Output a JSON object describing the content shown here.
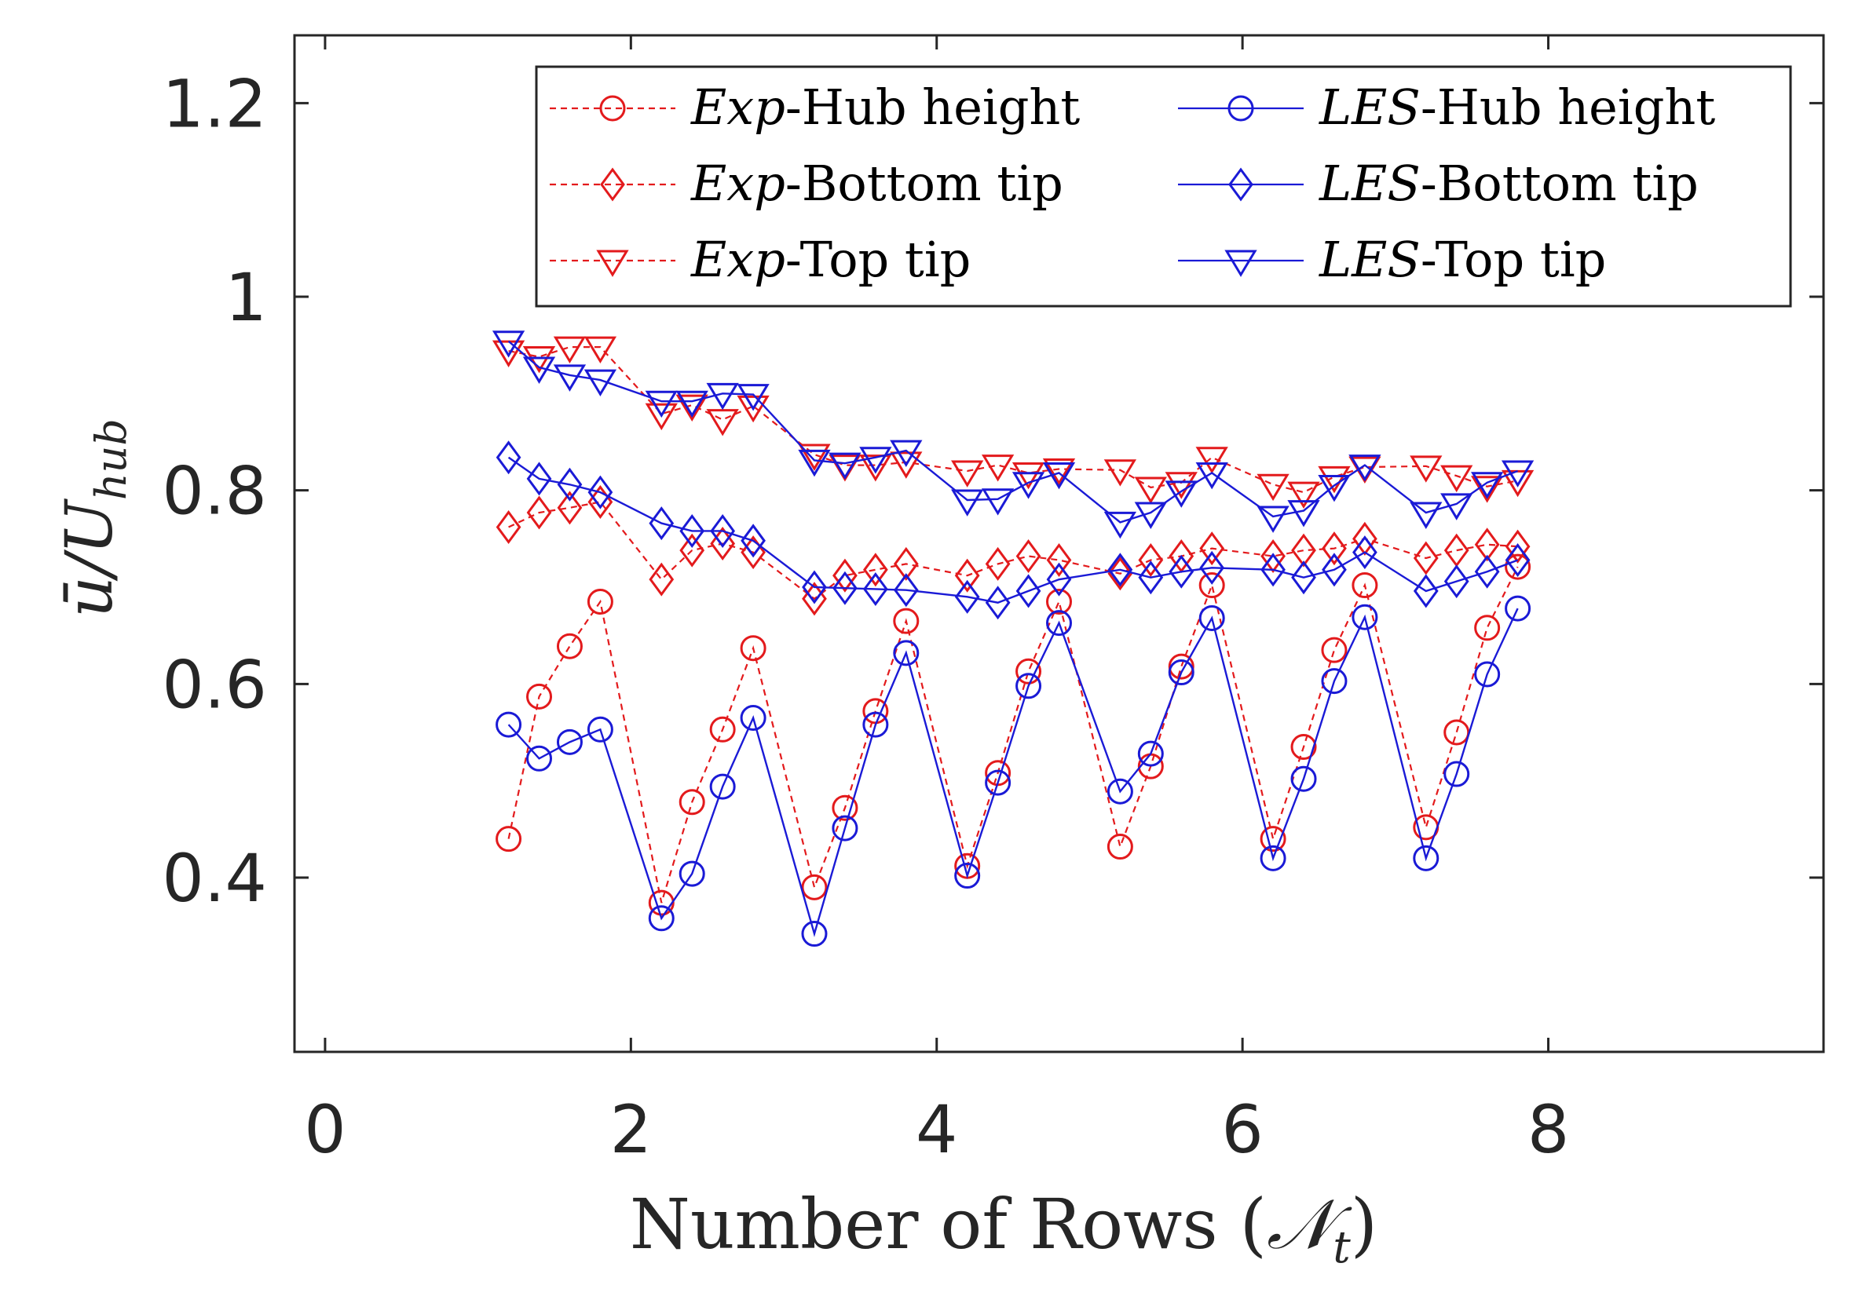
{
  "chart_data": {
    "type": "line",
    "title": "",
    "xlabel": "Number of Rows (",
    "xlabel_symbol": "𝒩",
    "xlabel_subscript": "t",
    "xlabel_close": ")",
    "ylabel": "ū/U",
    "ylabel_subscript": "hub",
    "xlim": [
      -0.2,
      9.8
    ],
    "ylim": [
      0.22,
      1.27
    ],
    "xticks": [
      0,
      2,
      4,
      6,
      8
    ],
    "xtick_labels": [
      "0",
      "2",
      "4",
      "6",
      "8"
    ],
    "yticks": [
      0.4,
      0.6,
      0.8,
      1.0,
      1.2
    ],
    "ytick_labels": [
      "0.4",
      "0.6",
      "0.8",
      "1",
      "1.2"
    ],
    "x": [
      1.2,
      1.4,
      1.6,
      1.8,
      2.2,
      2.4,
      2.6,
      2.8,
      3.2,
      3.4,
      3.6,
      3.8,
      4.2,
      4.4,
      4.6,
      4.8,
      5.2,
      5.4,
      5.6,
      5.8,
      6.2,
      6.4,
      6.6,
      6.8,
      7.2,
      7.4,
      7.6,
      7.8
    ],
    "legend_position": "top-right",
    "series": [
      {
        "name": "Exp-Hub height",
        "label_italic": "Exp",
        "label_rest": "-Hub height",
        "color": "#e31a1c",
        "line": "dashed",
        "marker": "circle",
        "values": [
          0.44,
          0.587,
          0.639,
          0.685,
          0.374,
          0.478,
          0.553,
          0.637,
          0.39,
          0.472,
          0.572,
          0.665,
          0.412,
          0.508,
          0.613,
          0.685,
          0.432,
          0.515,
          0.618,
          0.702,
          0.44,
          0.535,
          0.635,
          0.702,
          0.452,
          0.55,
          0.658,
          0.721
        ]
      },
      {
        "name": "LES-Hub height",
        "label_italic": "LES",
        "label_rest": "-Hub height",
        "color": "#1a1ad6",
        "line": "solid",
        "marker": "circle",
        "values": [
          0.558,
          0.523,
          0.54,
          0.553,
          0.358,
          0.404,
          0.494,
          0.565,
          0.342,
          0.451,
          0.558,
          0.632,
          0.402,
          0.498,
          0.598,
          0.663,
          0.489,
          0.528,
          0.612,
          0.668,
          0.42,
          0.502,
          0.603,
          0.669,
          0.42,
          0.507,
          0.61,
          0.678
        ]
      },
      {
        "name": "Exp-Bottom tip",
        "label_italic": "Exp",
        "label_rest": "-Bottom tip",
        "color": "#e31a1c",
        "line": "dashed",
        "marker": "diamond",
        "values": [
          0.762,
          0.777,
          0.782,
          0.788,
          0.708,
          0.738,
          0.745,
          0.736,
          0.688,
          0.712,
          0.718,
          0.724,
          0.712,
          0.724,
          0.732,
          0.728,
          0.714,
          0.728,
          0.732,
          0.74,
          0.732,
          0.738,
          0.74,
          0.75,
          0.73,
          0.738,
          0.744,
          0.742
        ]
      },
      {
        "name": "LES-Bottom tip",
        "label_italic": "LES",
        "label_rest": "-Bottom tip",
        "color": "#1a1ad6",
        "line": "solid",
        "marker": "diamond",
        "values": [
          0.834,
          0.812,
          0.806,
          0.798,
          0.766,
          0.758,
          0.758,
          0.748,
          0.7,
          0.699,
          0.698,
          0.697,
          0.69,
          0.684,
          0.696,
          0.708,
          0.718,
          0.71,
          0.716,
          0.72,
          0.718,
          0.71,
          0.718,
          0.736,
          0.696,
          0.706,
          0.716,
          0.728
        ]
      },
      {
        "name": "Exp-Top tip",
        "label_italic": "Exp",
        "label_rest": "-Top tip",
        "color": "#e31a1c",
        "line": "dashed",
        "marker": "triangle-down",
        "values": [
          0.944,
          0.938,
          0.948,
          0.948,
          0.879,
          0.888,
          0.873,
          0.887,
          0.837,
          0.826,
          0.826,
          0.829,
          0.82,
          0.826,
          0.818,
          0.822,
          0.821,
          0.803,
          0.808,
          0.834,
          0.806,
          0.798,
          0.814,
          0.824,
          0.825,
          0.815,
          0.804,
          0.81
        ]
      },
      {
        "name": "LES-Top tip",
        "label_italic": "LES",
        "label_rest": "-Top tip",
        "color": "#1a1ad6",
        "line": "solid",
        "marker": "triangle-down",
        "values": [
          0.954,
          0.927,
          0.919,
          0.914,
          0.892,
          0.892,
          0.9,
          0.899,
          0.831,
          0.828,
          0.834,
          0.841,
          0.79,
          0.791,
          0.808,
          0.818,
          0.767,
          0.777,
          0.799,
          0.818,
          0.773,
          0.779,
          0.805,
          0.826,
          0.777,
          0.786,
          0.808,
          0.82
        ]
      }
    ]
  }
}
